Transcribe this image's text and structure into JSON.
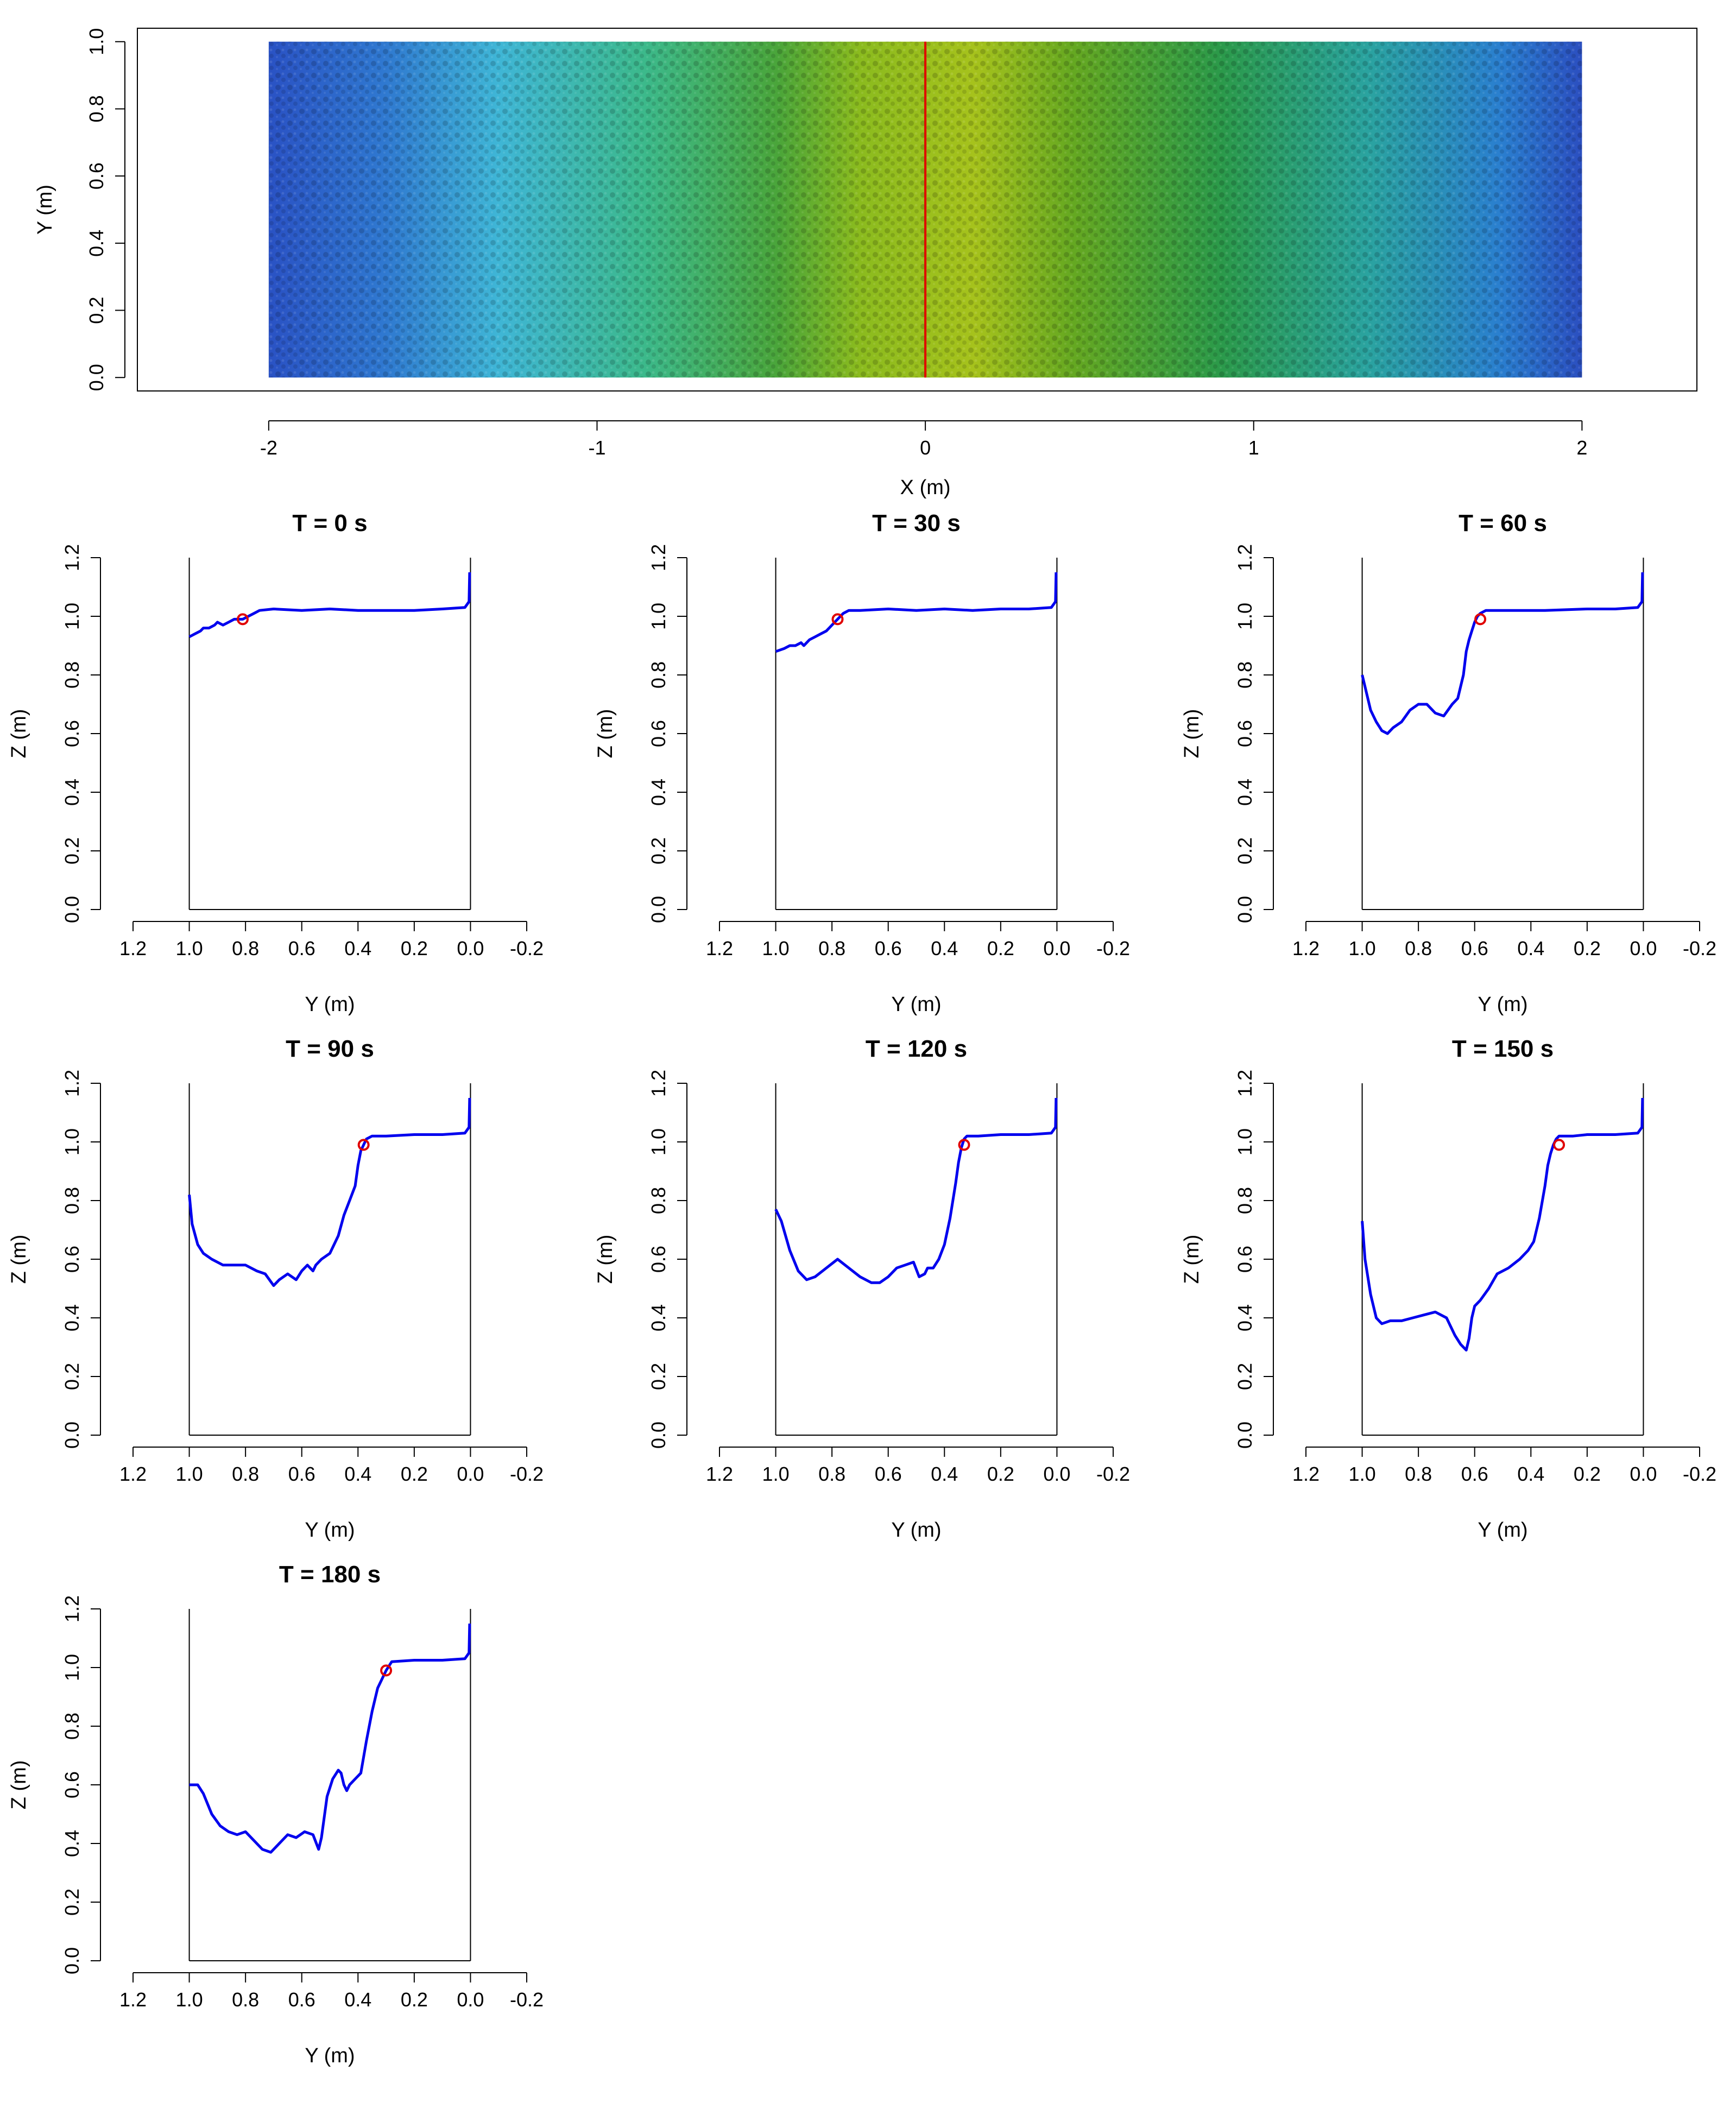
{
  "chart_data": [
    {
      "type": "heatmap",
      "id": "map",
      "title": "",
      "xlabel": "X (m)",
      "ylabel": "Y (m)",
      "xlim": [
        -2.4,
        2.35
      ],
      "ylim": [
        -0.04,
        1.04
      ],
      "xticks": [
        -2,
        -1,
        0,
        1,
        2
      ],
      "yticks": [
        0.0,
        0.2,
        0.4,
        0.6,
        0.8,
        1.0
      ],
      "surface_extent": {
        "x": [
          -2,
          2
        ],
        "y": [
          0,
          1
        ]
      },
      "color_stops": [
        {
          "x": -2.0,
          "color": "#2a52c4"
        },
        {
          "x": -1.65,
          "color": "#2f78d0"
        },
        {
          "x": -1.3,
          "color": "#3fb6d6"
        },
        {
          "x": -0.85,
          "color": "#3cb98a"
        },
        {
          "x": -0.45,
          "color": "#4aa53a"
        },
        {
          "x": -0.2,
          "color": "#8bbb1e"
        },
        {
          "x": 0.15,
          "color": "#a6c21c"
        },
        {
          "x": 0.45,
          "color": "#65a821"
        },
        {
          "x": 0.9,
          "color": "#2b9a4a"
        },
        {
          "x": 1.35,
          "color": "#2aa3a0"
        },
        {
          "x": 1.75,
          "color": "#2a7fcf"
        },
        {
          "x": 2.0,
          "color": "#2b4fc0"
        }
      ],
      "section_line_x": 0,
      "section_color": "#e00000"
    },
    {
      "type": "line",
      "id": "p0",
      "title": "T = 0 s",
      "xlabel": "Y (m)",
      "ylabel": "Z (m)",
      "xlim": [
        1.2,
        -0.2
      ],
      "ylim": [
        0.0,
        1.25
      ],
      "xticks": [
        "1.2",
        "1.0",
        "0.8",
        "0.6",
        "0.4",
        "0.2",
        "0.0",
        "-0.2"
      ],
      "yticks": [
        "0.0",
        "0.2",
        "0.4",
        "0.6",
        "0.8",
        "1.0",
        "1.2"
      ],
      "series": [
        {
          "name": "profile",
          "color": "#0000ee",
          "x": [
            1.0,
            0.98,
            0.96,
            0.95,
            0.93,
            0.91,
            0.9,
            0.88,
            0.86,
            0.84,
            0.82,
            0.81,
            0.79,
            0.77,
            0.75,
            0.7,
            0.6,
            0.5,
            0.4,
            0.3,
            0.2,
            0.1,
            0.02,
            0.005,
            0.003
          ],
          "y": [
            0.93,
            0.94,
            0.95,
            0.96,
            0.96,
            0.97,
            0.98,
            0.97,
            0.98,
            0.99,
            0.99,
            0.99,
            1.0,
            1.01,
            1.02,
            1.025,
            1.02,
            1.025,
            1.02,
            1.02,
            1.02,
            1.025,
            1.03,
            1.05,
            1.15
          ]
        }
      ],
      "marker": {
        "x": 0.81,
        "y": 0.99,
        "color": "#e00000"
      }
    },
    {
      "type": "line",
      "id": "p30",
      "title": "T = 30 s",
      "xlabel": "Y (m)",
      "ylabel": "Z (m)",
      "xlim": [
        1.2,
        -0.2
      ],
      "ylim": [
        0.0,
        1.25
      ],
      "xticks": [
        "1.2",
        "1.0",
        "0.8",
        "0.6",
        "0.4",
        "0.2",
        "0.0",
        "-0.2"
      ],
      "yticks": [
        "0.0",
        "0.2",
        "0.4",
        "0.6",
        "0.8",
        "1.0",
        "1.2"
      ],
      "series": [
        {
          "name": "profile",
          "color": "#0000ee",
          "x": [
            1.0,
            0.97,
            0.95,
            0.93,
            0.91,
            0.9,
            0.88,
            0.86,
            0.84,
            0.82,
            0.8,
            0.79,
            0.78,
            0.76,
            0.74,
            0.7,
            0.6,
            0.5,
            0.4,
            0.3,
            0.2,
            0.1,
            0.02,
            0.005,
            0.003
          ],
          "y": [
            0.88,
            0.89,
            0.9,
            0.9,
            0.91,
            0.9,
            0.92,
            0.93,
            0.94,
            0.95,
            0.97,
            0.98,
            0.99,
            1.01,
            1.02,
            1.02,
            1.025,
            1.02,
            1.025,
            1.02,
            1.025,
            1.025,
            1.03,
            1.05,
            1.15
          ]
        }
      ],
      "marker": {
        "x": 0.78,
        "y": 0.99,
        "color": "#e00000"
      }
    },
    {
      "type": "line",
      "id": "p60",
      "title": "T = 60 s",
      "xlabel": "Y (m)",
      "ylabel": "Z (m)",
      "xlim": [
        1.2,
        -0.2
      ],
      "ylim": [
        0.0,
        1.25
      ],
      "xticks": [
        "1.2",
        "1.0",
        "0.8",
        "0.6",
        "0.4",
        "0.2",
        "0.0",
        "-0.2"
      ],
      "yticks": [
        "0.0",
        "0.2",
        "0.4",
        "0.6",
        "0.8",
        "1.0",
        "1.2"
      ],
      "series": [
        {
          "name": "profile",
          "color": "#0000ee",
          "x": [
            1.0,
            0.99,
            0.97,
            0.95,
            0.93,
            0.91,
            0.89,
            0.86,
            0.83,
            0.8,
            0.77,
            0.74,
            0.71,
            0.68,
            0.66,
            0.64,
            0.63,
            0.62,
            0.61,
            0.6,
            0.59,
            0.58,
            0.56,
            0.52,
            0.45,
            0.35,
            0.2,
            0.1,
            0.02,
            0.005,
            0.003
          ],
          "y": [
            0.8,
            0.76,
            0.68,
            0.64,
            0.61,
            0.6,
            0.62,
            0.64,
            0.68,
            0.7,
            0.7,
            0.67,
            0.66,
            0.7,
            0.72,
            0.8,
            0.88,
            0.92,
            0.95,
            0.98,
            1.0,
            1.01,
            1.02,
            1.02,
            1.02,
            1.02,
            1.025,
            1.025,
            1.03,
            1.05,
            1.15
          ]
        }
      ],
      "marker": {
        "x": 0.58,
        "y": 0.99,
        "color": "#e00000"
      }
    },
    {
      "type": "line",
      "id": "p90",
      "title": "T = 90 s",
      "xlabel": "Y (m)",
      "ylabel": "Z (m)",
      "xlim": [
        1.2,
        -0.2
      ],
      "ylim": [
        0.0,
        1.25
      ],
      "xticks": [
        "1.2",
        "1.0",
        "0.8",
        "0.6",
        "0.4",
        "0.2",
        "0.0",
        "-0.2"
      ],
      "yticks": [
        "0.0",
        "0.2",
        "0.4",
        "0.6",
        "0.8",
        "1.0",
        "1.2"
      ],
      "series": [
        {
          "name": "profile",
          "color": "#0000ee",
          "x": [
            1.0,
            0.99,
            0.97,
            0.95,
            0.92,
            0.88,
            0.84,
            0.8,
            0.76,
            0.73,
            0.7,
            0.68,
            0.65,
            0.62,
            0.6,
            0.58,
            0.56,
            0.55,
            0.53,
            0.5,
            0.47,
            0.45,
            0.43,
            0.41,
            0.4,
            0.39,
            0.37,
            0.35,
            0.3,
            0.2,
            0.1,
            0.02,
            0.005,
            0.003
          ],
          "y": [
            0.82,
            0.72,
            0.65,
            0.62,
            0.6,
            0.58,
            0.58,
            0.58,
            0.56,
            0.55,
            0.51,
            0.53,
            0.55,
            0.53,
            0.56,
            0.58,
            0.56,
            0.58,
            0.6,
            0.62,
            0.68,
            0.75,
            0.8,
            0.85,
            0.92,
            0.97,
            1.01,
            1.02,
            1.02,
            1.025,
            1.025,
            1.03,
            1.05,
            1.15
          ]
        }
      ],
      "marker": {
        "x": 0.38,
        "y": 0.99,
        "color": "#e00000"
      }
    },
    {
      "type": "line",
      "id": "p120",
      "title": "T = 120 s",
      "xlabel": "Y (m)",
      "ylabel": "Z (m)",
      "xlim": [
        1.2,
        -0.2
      ],
      "ylim": [
        0.0,
        1.25
      ],
      "xticks": [
        "1.2",
        "1.0",
        "0.8",
        "0.6",
        "0.4",
        "0.2",
        "0.0",
        "-0.2"
      ],
      "yticks": [
        "0.0",
        "0.2",
        "0.4",
        "0.6",
        "0.8",
        "1.0",
        "1.2"
      ],
      "series": [
        {
          "name": "profile",
          "color": "#0000ee",
          "x": [
            1.0,
            0.98,
            0.95,
            0.92,
            0.89,
            0.86,
            0.82,
            0.78,
            0.74,
            0.7,
            0.66,
            0.63,
            0.6,
            0.57,
            0.54,
            0.51,
            0.49,
            0.47,
            0.46,
            0.44,
            0.42,
            0.4,
            0.38,
            0.36,
            0.35,
            0.34,
            0.33,
            0.32,
            0.28,
            0.2,
            0.1,
            0.02,
            0.005,
            0.003
          ],
          "y": [
            0.77,
            0.73,
            0.63,
            0.56,
            0.53,
            0.54,
            0.57,
            0.6,
            0.57,
            0.54,
            0.52,
            0.52,
            0.54,
            0.57,
            0.58,
            0.59,
            0.54,
            0.55,
            0.57,
            0.57,
            0.6,
            0.65,
            0.74,
            0.86,
            0.93,
            0.98,
            1.01,
            1.02,
            1.02,
            1.025,
            1.025,
            1.03,
            1.05,
            1.15
          ]
        }
      ],
      "marker": {
        "x": 0.33,
        "y": 0.99,
        "color": "#e00000"
      }
    },
    {
      "type": "line",
      "id": "p150",
      "title": "T = 150 s",
      "xlabel": "Y (m)",
      "ylabel": "Z (m)",
      "xlim": [
        1.2,
        -0.2
      ],
      "ylim": [
        0.0,
        1.25
      ],
      "xticks": [
        "1.2",
        "1.0",
        "0.8",
        "0.6",
        "0.4",
        "0.2",
        "0.0",
        "-0.2"
      ],
      "yticks": [
        "0.0",
        "0.2",
        "0.4",
        "0.6",
        "0.8",
        "1.0",
        "1.2"
      ],
      "series": [
        {
          "name": "profile",
          "color": "#0000ee",
          "x": [
            1.0,
            0.99,
            0.97,
            0.95,
            0.93,
            0.9,
            0.86,
            0.82,
            0.78,
            0.74,
            0.7,
            0.67,
            0.65,
            0.63,
            0.62,
            0.61,
            0.6,
            0.58,
            0.55,
            0.52,
            0.48,
            0.44,
            0.41,
            0.39,
            0.37,
            0.35,
            0.34,
            0.33,
            0.32,
            0.31,
            0.3,
            0.25,
            0.2,
            0.1,
            0.02,
            0.005,
            0.003
          ],
          "y": [
            0.73,
            0.6,
            0.48,
            0.4,
            0.38,
            0.39,
            0.39,
            0.4,
            0.41,
            0.42,
            0.4,
            0.34,
            0.31,
            0.29,
            0.33,
            0.4,
            0.44,
            0.46,
            0.5,
            0.55,
            0.57,
            0.6,
            0.63,
            0.66,
            0.74,
            0.85,
            0.92,
            0.96,
            0.99,
            1.01,
            1.02,
            1.02,
            1.025,
            1.025,
            1.03,
            1.05,
            1.15
          ]
        }
      ],
      "marker": {
        "x": 0.3,
        "y": 0.99,
        "color": "#e00000"
      }
    },
    {
      "type": "line",
      "id": "p180",
      "title": "T = 180 s",
      "xlabel": "Y (m)",
      "ylabel": "Z (m)",
      "xlim": [
        1.2,
        -0.2
      ],
      "ylim": [
        0.0,
        1.25
      ],
      "xticks": [
        "1.2",
        "1.0",
        "0.8",
        "0.6",
        "0.4",
        "0.2",
        "0.0",
        "-0.2"
      ],
      "yticks": [
        "0.0",
        "0.2",
        "0.4",
        "0.6",
        "0.8",
        "1.0",
        "1.2"
      ],
      "series": [
        {
          "name": "profile",
          "color": "#0000ee",
          "x": [
            1.0,
            0.97,
            0.95,
            0.92,
            0.89,
            0.86,
            0.83,
            0.8,
            0.77,
            0.74,
            0.71,
            0.68,
            0.65,
            0.62,
            0.59,
            0.56,
            0.54,
            0.53,
            0.51,
            0.49,
            0.47,
            0.46,
            0.45,
            0.44,
            0.43,
            0.41,
            0.39,
            0.37,
            0.35,
            0.33,
            0.31,
            0.3,
            0.28,
            0.2,
            0.1,
            0.02,
            0.005,
            0.003
          ],
          "y": [
            0.6,
            0.6,
            0.57,
            0.5,
            0.46,
            0.44,
            0.43,
            0.44,
            0.41,
            0.38,
            0.37,
            0.4,
            0.43,
            0.42,
            0.44,
            0.43,
            0.38,
            0.42,
            0.56,
            0.62,
            0.65,
            0.64,
            0.6,
            0.58,
            0.6,
            0.62,
            0.64,
            0.75,
            0.85,
            0.93,
            0.97,
            0.99,
            1.02,
            1.025,
            1.025,
            1.03,
            1.05,
            1.15
          ]
        }
      ],
      "marker": {
        "x": 0.3,
        "y": 0.99,
        "color": "#e00000"
      }
    }
  ]
}
